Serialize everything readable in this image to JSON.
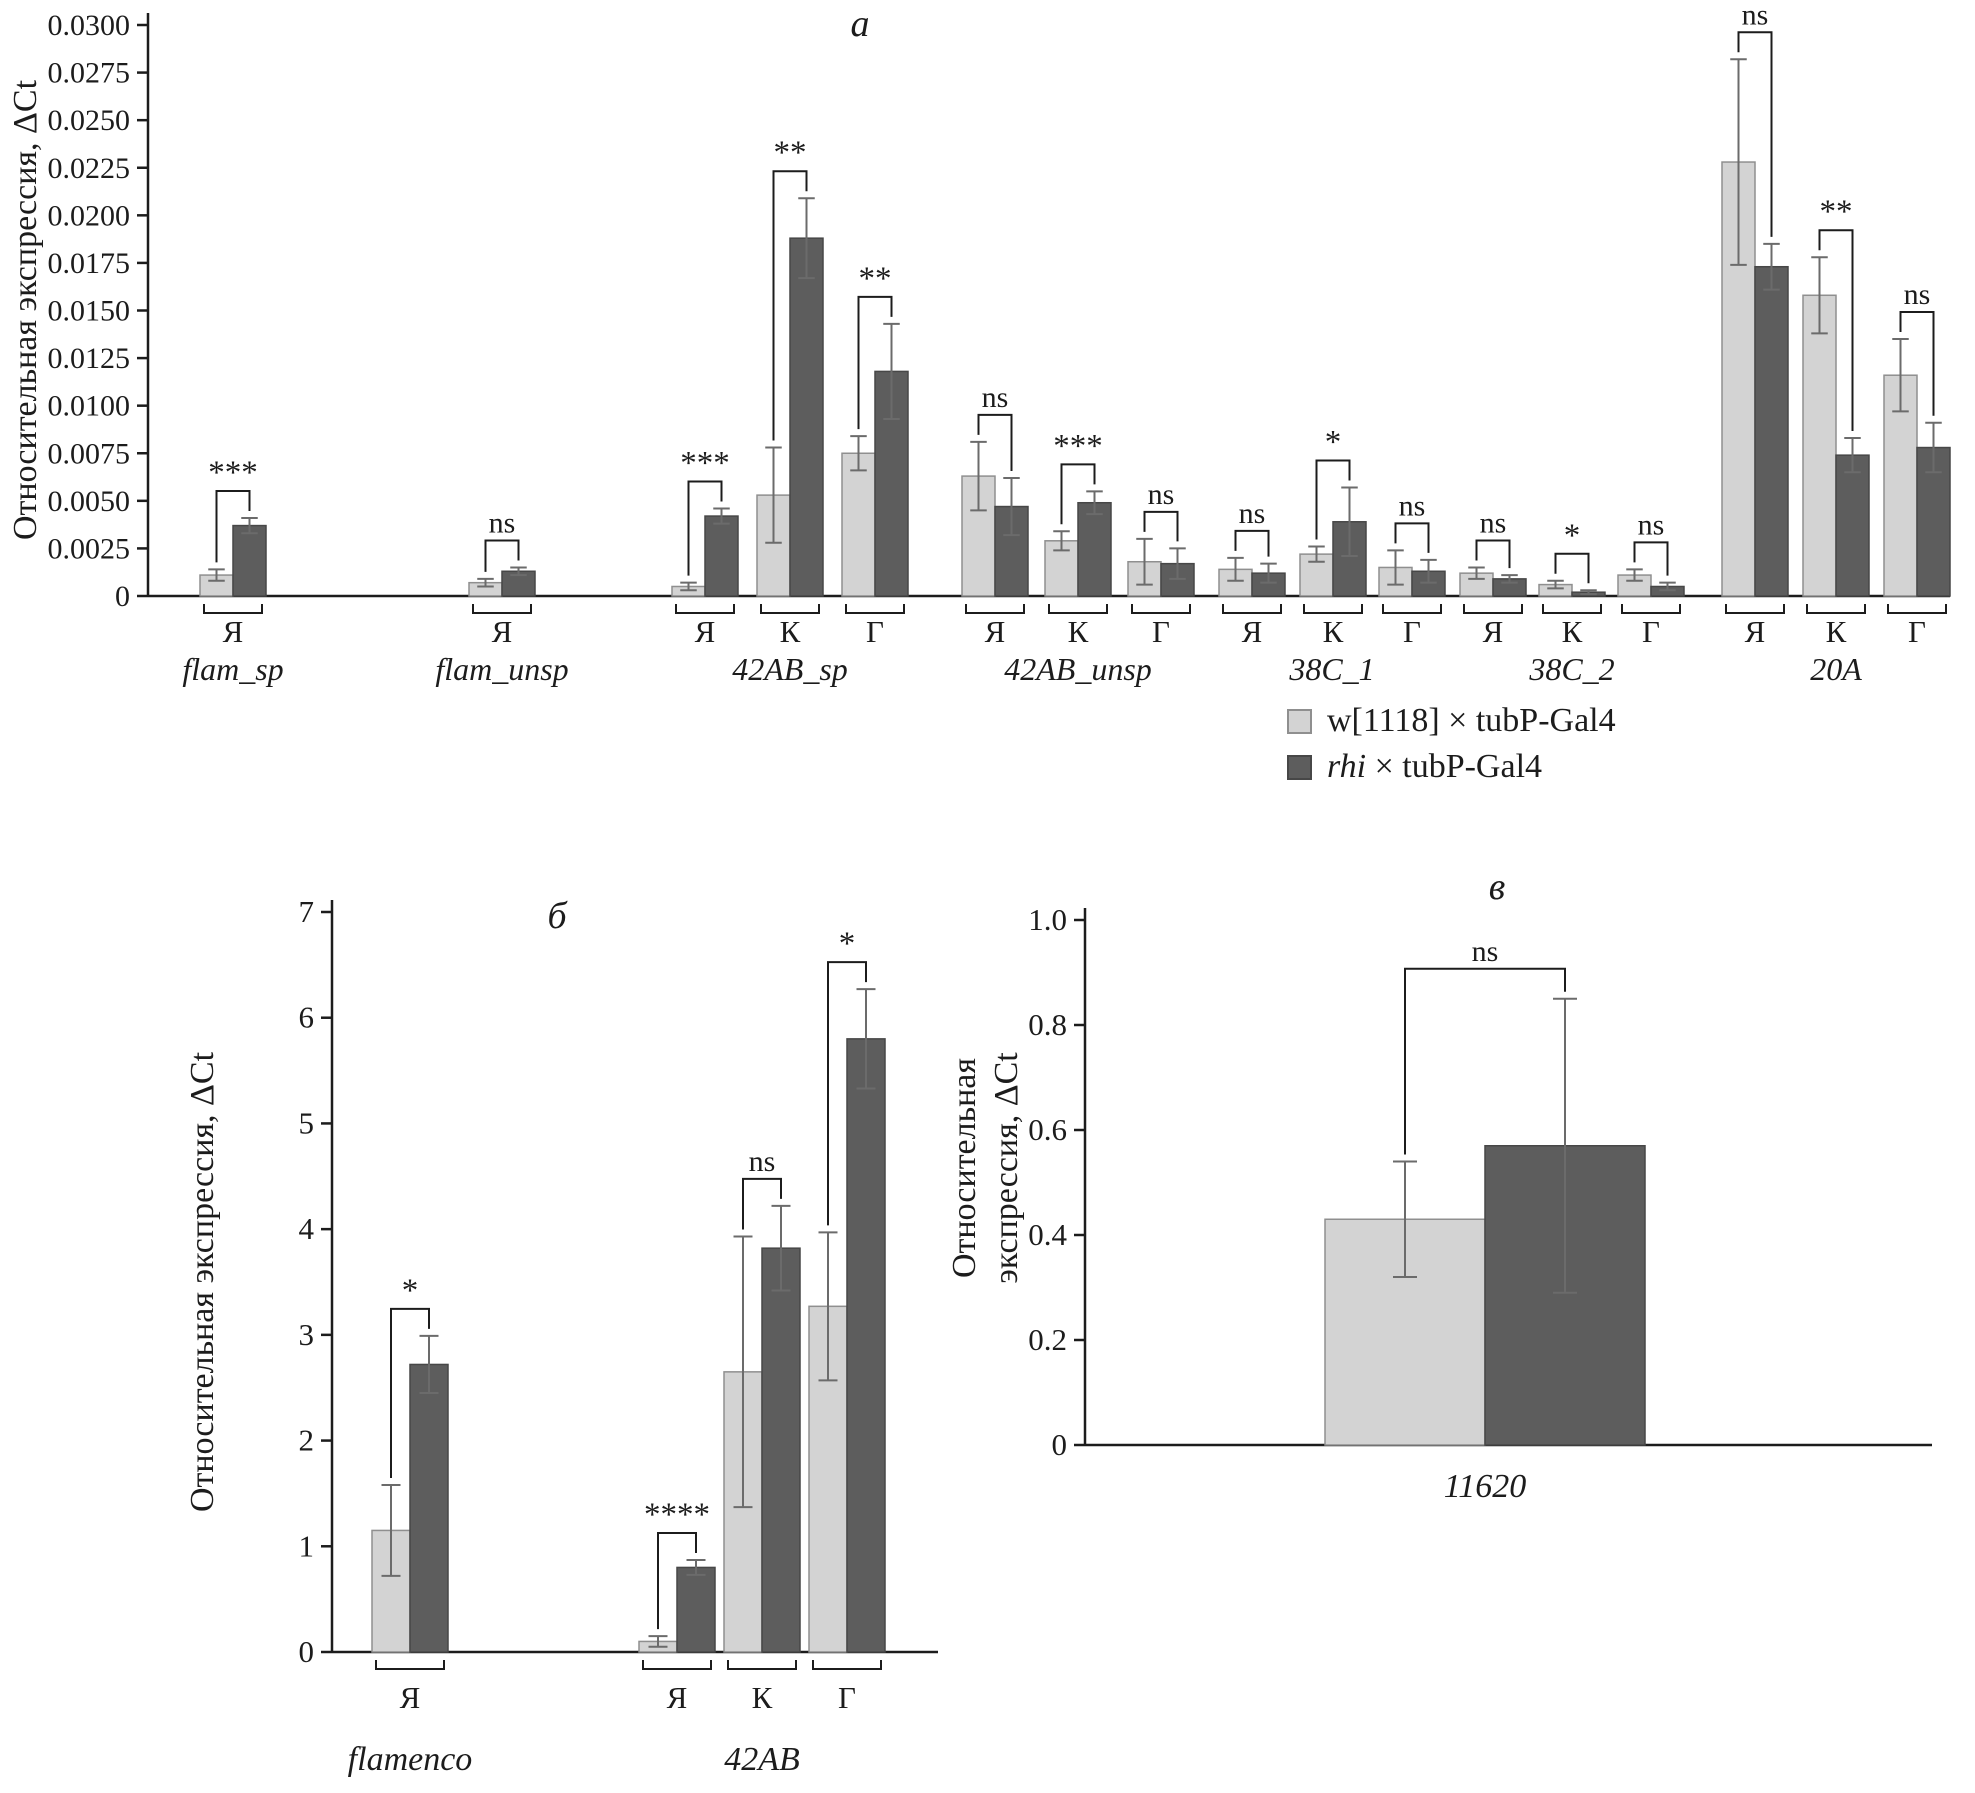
{
  "legend": [
    {
      "swatch": "light",
      "prefix_italic": "",
      "text": "w[1118] × tubP-Gal4"
    },
    {
      "swatch": "dark",
      "prefix_italic": "rhi",
      "text": " × tubP-Gal4"
    }
  ],
  "colors": {
    "light_fill": "#d3d3d3",
    "light_stroke": "#8f8f8f",
    "dark_fill": "#5d5d5d",
    "dark_stroke": "#474747",
    "error": "#6b6b6b",
    "axis": "#1c1c1c"
  },
  "chart_data": [
    {
      "panel_id": "a",
      "type": "bar",
      "title": "а",
      "ylabel": "Относительная экспрессия, ΔCt",
      "ylim": [
        0,
        0.03
      ],
      "ytick_labels": [
        "0",
        "0.0025",
        "0.0050",
        "0.0075",
        "0.0100",
        "0.0125",
        "0.0150",
        "0.0175",
        "0.0200",
        "0.0225",
        "0.0250",
        "0.0275",
        "0.0300"
      ],
      "series_order": [
        "w[1118] × tubP-Gal4",
        "rhi × tubP-Gal4"
      ],
      "groups": [
        {
          "name": "flam_sp",
          "pairs": [
            {
              "cat": "Я",
              "light": 0.0011,
              "light_err": 0.0003,
              "dark": 0.0037,
              "dark_err": 0.0004,
              "sig": "***"
            }
          ]
        },
        {
          "name": "flam_unsp",
          "pairs": [
            {
              "cat": "Я",
              "light": 0.0007,
              "light_err": 0.0002,
              "dark": 0.0013,
              "dark_err": 0.0002,
              "sig": "ns"
            }
          ]
        },
        {
          "name": "42AB_sp",
          "pairs": [
            {
              "cat": "Я",
              "light": 0.0005,
              "light_err": 0.0002,
              "dark": 0.0042,
              "dark_err": 0.0004,
              "sig": "***"
            },
            {
              "cat": "К",
              "light": 0.0053,
              "light_err": 0.0025,
              "dark": 0.0188,
              "dark_err": 0.0021,
              "sig": "**"
            },
            {
              "cat": "Г",
              "light": 0.0075,
              "light_err": 0.0009,
              "dark": 0.0118,
              "dark_err": 0.0025,
              "sig": "**"
            }
          ]
        },
        {
          "name": "42AB_unsp",
          "pairs": [
            {
              "cat": "Я",
              "light": 0.0063,
              "light_err": 0.0018,
              "dark": 0.0047,
              "dark_err": 0.0015,
              "sig": "ns"
            },
            {
              "cat": "К",
              "light": 0.0029,
              "light_err": 0.0005,
              "dark": 0.0049,
              "dark_err": 0.0006,
              "sig": "***"
            },
            {
              "cat": "Г",
              "light": 0.0018,
              "light_err": 0.0012,
              "dark": 0.0017,
              "dark_err": 0.0008,
              "sig": "ns"
            }
          ]
        },
        {
          "name": "38C_1",
          "pairs": [
            {
              "cat": "Я",
              "light": 0.0014,
              "light_err": 0.0006,
              "dark": 0.0012,
              "dark_err": 0.0005,
              "sig": "ns"
            },
            {
              "cat": "К",
              "light": 0.0022,
              "light_err": 0.0004,
              "dark": 0.0039,
              "dark_err": 0.0018,
              "sig": "*"
            },
            {
              "cat": "Г",
              "light": 0.0015,
              "light_err": 0.0009,
              "dark": 0.0013,
              "dark_err": 0.0006,
              "sig": "ns"
            }
          ]
        },
        {
          "name": "38C_2",
          "pairs": [
            {
              "cat": "Я",
              "light": 0.0012,
              "light_err": 0.0003,
              "dark": 0.0009,
              "dark_err": 0.0002,
              "sig": "ns"
            },
            {
              "cat": "К",
              "light": 0.0006,
              "light_err": 0.0002,
              "dark": 0.0002,
              "dark_err": 0.0001,
              "sig": "*"
            },
            {
              "cat": "Г",
              "light": 0.0011,
              "light_err": 0.0003,
              "dark": 0.0005,
              "dark_err": 0.0002,
              "sig": "ns"
            }
          ]
        },
        {
          "name": "20A",
          "pairs": [
            {
              "cat": "Я",
              "light": 0.0228,
              "light_err": 0.0054,
              "dark": 0.0173,
              "dark_err": 0.0012,
              "sig": "ns"
            },
            {
              "cat": "К",
              "light": 0.0158,
              "light_err": 0.002,
              "dark": 0.0074,
              "dark_err": 0.0009,
              "sig": "**"
            },
            {
              "cat": "Г",
              "light": 0.0116,
              "light_err": 0.0019,
              "dark": 0.0078,
              "dark_err": 0.0013,
              "sig": "ns"
            }
          ]
        }
      ]
    },
    {
      "panel_id": "b",
      "type": "bar",
      "title": "б",
      "ylabel": "Относительная экспрессия, ΔCt",
      "ylim": [
        0,
        7
      ],
      "ytick_labels": [
        "0",
        "1",
        "2",
        "3",
        "4",
        "5",
        "6",
        "7"
      ],
      "series_order": [
        "w[1118] × tubP-Gal4",
        "rhi × tubP-Gal4"
      ],
      "groups": [
        {
          "name": "flamenco",
          "pairs": [
            {
              "cat": "Я",
              "light": 1.15,
              "light_err": 0.43,
              "dark": 2.72,
              "dark_err": 0.27,
              "sig": "*"
            }
          ]
        },
        {
          "name": "42AB",
          "pairs": [
            {
              "cat": "Я",
              "light": 0.1,
              "light_err": 0.05,
              "dark": 0.8,
              "dark_err": 0.07,
              "sig": "****"
            },
            {
              "cat": "К",
              "light": 2.65,
              "light_err": 1.28,
              "dark": 3.82,
              "dark_err": 0.4,
              "sig": "ns"
            },
            {
              "cat": "Г",
              "light": 3.27,
              "light_err": 0.7,
              "dark": 5.8,
              "dark_err": 0.47,
              "sig": "*"
            }
          ]
        }
      ]
    },
    {
      "panel_id": "v",
      "type": "bar",
      "title": "в",
      "ylabel_lines": [
        "Относительная",
        "экспрессия, ΔCt"
      ],
      "ylim": [
        0,
        1.0
      ],
      "ytick_labels": [
        "0",
        "0.2",
        "0.4",
        "0.6",
        "0.8",
        "1.0"
      ],
      "series_order": [
        "w[1118] × tubP-Gal4",
        "rhi × tubP-Gal4"
      ],
      "groups": [
        {
          "name": "11620",
          "pairs": [
            {
              "cat": "",
              "light": 0.43,
              "light_err": 0.11,
              "dark": 0.57,
              "dark_err": 0.28,
              "sig": "ns"
            }
          ]
        }
      ]
    }
  ]
}
